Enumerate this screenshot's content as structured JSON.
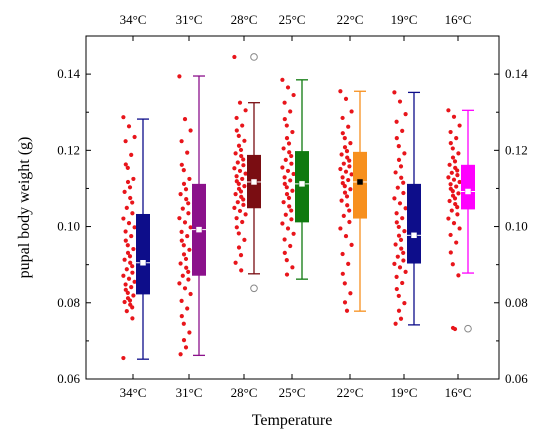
{
  "chart_data": {
    "type": "box",
    "title": "",
    "xlabel": "Temperature",
    "ylabel": "pupal body weight (g)",
    "ylim": [
      0.06,
      0.15
    ],
    "yticks": [
      0.06,
      0.08,
      0.1,
      0.12,
      0.14
    ],
    "ytick_labels": [
      "0.06",
      "0.08",
      "0.10",
      "0.12",
      "0.14"
    ],
    "categories": [
      "34°C",
      "31°C",
      "28°C",
      "25°C",
      "22°C",
      "19°C",
      "16°C"
    ],
    "grid": false,
    "mirror_axes": true,
    "series": [
      {
        "category": "34°C",
        "color": "#0d0d8a",
        "whisker_low": 0.0652,
        "q1": 0.0822,
        "median": 0.0905,
        "mean": 0.0905,
        "q3": 0.1033,
        "whisker_high": 0.1282,
        "outliers": [],
        "points": [
          0.1287,
          0.1263,
          0.1235,
          0.1224,
          0.1188,
          0.1163,
          0.1154,
          0.1125,
          0.1117,
          0.1103,
          0.1091,
          0.1075,
          0.1063,
          0.1049,
          0.1035,
          0.1021,
          0.1009,
          0.0998,
          0.0987,
          0.0975,
          0.0963,
          0.0951,
          0.0941,
          0.0931,
          0.0922,
          0.0913,
          0.0905,
          0.0896,
          0.0888,
          0.0879,
          0.0871,
          0.0863,
          0.0855,
          0.0848,
          0.0841,
          0.0834,
          0.0826,
          0.0819,
          0.0812,
          0.0806,
          0.0802,
          0.0795,
          0.0788,
          0.0778,
          0.0759,
          0.0655
        ]
      },
      {
        "category": "31°C",
        "color": "#8b118b",
        "whisker_low": 0.0662,
        "q1": 0.0871,
        "median": 0.0992,
        "mean": 0.0992,
        "q3": 0.1112,
        "whisker_high": 0.1395,
        "outliers": [],
        "points": [
          0.1394,
          0.1282,
          0.1252,
          0.1224,
          0.1194,
          0.1162,
          0.1148,
          0.1125,
          0.1112,
          0.1098,
          0.1085,
          0.1072,
          0.1061,
          0.1047,
          0.1035,
          0.1022,
          0.1011,
          0.0998,
          0.0986,
          0.0975,
          0.0963,
          0.0951,
          0.0939,
          0.0927,
          0.0915,
          0.0903,
          0.0892,
          0.0881,
          0.0871,
          0.0861,
          0.0851,
          0.0838,
          0.0823,
          0.0805,
          0.0785,
          0.0765,
          0.0745,
          0.0722,
          0.0702,
          0.0683,
          0.0665
        ]
      },
      {
        "category": "28°C",
        "color": "#7a0d12",
        "whisker_low": 0.0876,
        "q1": 0.1048,
        "median": 0.1117,
        "mean": 0.1117,
        "q3": 0.1188,
        "whisker_high": 0.1325,
        "outliers": [
          0.1445,
          0.0838
        ],
        "points": [
          0.1445,
          0.1325,
          0.1305,
          0.1285,
          0.1265,
          0.1252,
          0.1238,
          0.1225,
          0.1212,
          0.1201,
          0.1192,
          0.1185,
          0.1176,
          0.1168,
          0.1161,
          0.1153,
          0.1146,
          0.1139,
          0.1132,
          0.1125,
          0.1119,
          0.1112,
          0.1106,
          0.1099,
          0.1092,
          0.1085,
          0.1078,
          0.1071,
          0.1064,
          0.1057,
          0.1049,
          0.1041,
          0.1032,
          0.1022,
          0.1012,
          0.0998,
          0.0982,
          0.0965,
          0.0945,
          0.0925,
          0.0905,
          0.0885
        ]
      },
      {
        "category": "25°C",
        "color": "#0f7a0f",
        "whisker_low": 0.0862,
        "q1": 0.1011,
        "median": 0.1112,
        "mean": 0.1112,
        "q3": 0.1198,
        "whisker_high": 0.1385,
        "outliers": [],
        "points": [
          0.1385,
          0.1365,
          0.1345,
          0.1325,
          0.1302,
          0.1282,
          0.1265,
          0.1248,
          0.1232,
          0.1218,
          0.1205,
          0.1195,
          0.1185,
          0.1175,
          0.1165,
          0.1155,
          0.1146,
          0.1138,
          0.1129,
          0.1121,
          0.1112,
          0.1103,
          0.1094,
          0.1085,
          0.1075,
          0.1064,
          0.1053,
          0.1042,
          0.1031,
          0.1019,
          0.1008,
          0.0995,
          0.0981,
          0.0966,
          0.0949,
          0.0931,
          0.0912,
          0.0893,
          0.0874
        ]
      },
      {
        "category": "22°C",
        "color": "#f7901e",
        "whisker_low": 0.0778,
        "q1": 0.1021,
        "median": 0.1117,
        "mean": 0.1117,
        "q3": 0.1196,
        "whisker_high": 0.1355,
        "outliers": [],
        "points": [
          0.1355,
          0.1335,
          0.1302,
          0.1285,
          0.1262,
          0.1245,
          0.1232,
          0.1219,
          0.1208,
          0.1198,
          0.1189,
          0.1181,
          0.1173,
          0.1165,
          0.1158,
          0.1151,
          0.1144,
          0.1137,
          0.1129,
          0.1122,
          0.1114,
          0.1106,
          0.1098,
          0.1089,
          0.1079,
          0.1068,
          0.1056,
          0.1042,
          0.1028,
          0.1012,
          0.0995,
          0.0975,
          0.0952,
          0.0928,
          0.0902,
          0.0876,
          0.0851,
          0.0825,
          0.0801,
          0.0779
        ]
      },
      {
        "category": "19°C",
        "color": "#0d0d8a",
        "whisker_low": 0.0742,
        "q1": 0.0903,
        "median": 0.0977,
        "mean": 0.0977,
        "q3": 0.1112,
        "whisker_high": 0.1352,
        "outliers": [],
        "points": [
          0.1352,
          0.1328,
          0.1295,
          0.1275,
          0.1251,
          0.1232,
          0.1211,
          0.1192,
          0.1175,
          0.1158,
          0.1142,
          0.1128,
          0.1115,
          0.1102,
          0.1088,
          0.1074,
          0.1061,
          0.1048,
          0.1035,
          0.1022,
          0.1011,
          0.0999,
          0.0988,
          0.0976,
          0.0965,
          0.0953,
          0.0942,
          0.0931,
          0.0921,
          0.0911,
          0.0902,
          0.0893,
          0.0881,
          0.0868,
          0.0852,
          0.0836,
          0.0818,
          0.0799,
          0.0779,
          0.0758,
          0.0745
        ]
      },
      {
        "category": "16°C",
        "color": "#ff00ff",
        "whisker_low": 0.0878,
        "q1": 0.1045,
        "median": 0.1092,
        "mean": 0.1092,
        "q3": 0.1162,
        "whisker_high": 0.1305,
        "outliers": [
          0.0732
        ],
        "points": [
          0.1305,
          0.1288,
          0.1265,
          0.1248,
          0.1232,
          0.1219,
          0.1205,
          0.1192,
          0.1181,
          0.1171,
          0.1162,
          0.1154,
          0.1147,
          0.1141,
          0.1135,
          0.1129,
          0.1123,
          0.1117,
          0.1111,
          0.1105,
          0.1099,
          0.1093,
          0.1087,
          0.1081,
          0.1074,
          0.1067,
          0.1059,
          0.1051,
          0.1042,
          0.1032,
          0.1021,
          0.1009,
          0.0995,
          0.0978,
          0.0958,
          0.0932,
          0.0901,
          0.0872,
          0.0734,
          0.0731
        ]
      }
    ]
  }
}
